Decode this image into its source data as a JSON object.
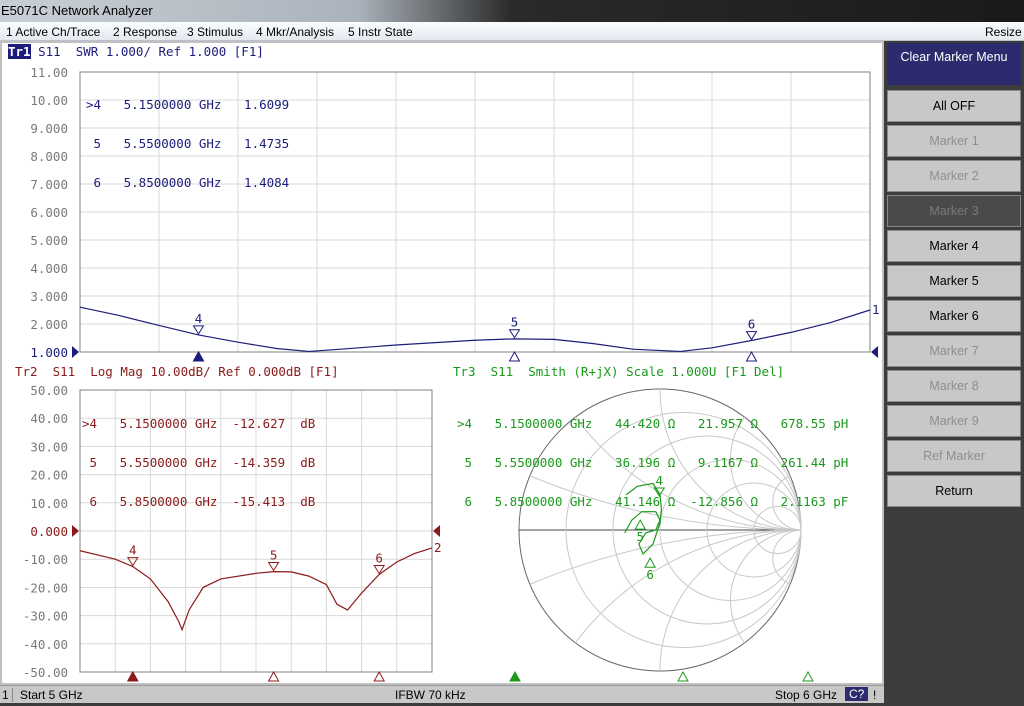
{
  "window": {
    "title": "E5071C Network Analyzer"
  },
  "menu": {
    "items": [
      "1 Active Ch/Trace",
      "2 Response",
      "3 Stimulus",
      "4 Mkr/Analysis",
      "5 Instr State"
    ],
    "resize": "Resize"
  },
  "softkeys": {
    "title": "Clear Marker Menu",
    "buttons": [
      {
        "label": "All OFF",
        "state": "enabled"
      },
      {
        "label": "Marker 1",
        "state": "disabled"
      },
      {
        "label": "Marker 2",
        "state": "disabled"
      },
      {
        "label": "Marker 3",
        "state": "selected-disabled"
      },
      {
        "label": "Marker 4",
        "state": "enabled"
      },
      {
        "label": "Marker 5",
        "state": "enabled"
      },
      {
        "label": "Marker 6",
        "state": "enabled"
      },
      {
        "label": "Marker 7",
        "state": "disabled"
      },
      {
        "label": "Marker 8",
        "state": "disabled"
      },
      {
        "label": "Marker 9",
        "state": "disabled"
      },
      {
        "label": "Ref Marker",
        "state": "disabled"
      },
      {
        "label": "Return",
        "state": "enabled"
      }
    ]
  },
  "status": {
    "channel": "1",
    "start": "Start 5 GHz",
    "ifbw": "IFBW 70 kHz",
    "stop": "Stop 6 GHz",
    "cal": "C?",
    "warn": "!"
  },
  "colors": {
    "tr1": "#1c1c7c",
    "tr2": "#8b1a1a",
    "tr3": "#1a9a1a",
    "softkey_title": "#2b2b6e"
  },
  "traces": {
    "tr1": {
      "label_box": "Tr1",
      "header": " S11  SWR 1.000/ Ref 1.000 [F1]",
      "markers": [
        ">4   5.1500000 GHz   1.6099",
        " 5   5.5500000 GHz   1.4735",
        " 6   5.8500000 GHz   1.4084"
      ],
      "ref_label": "1"
    },
    "tr2": {
      "header": "Tr2  S11  Log Mag 10.00dB/ Ref 0.000dB [F1]",
      "markers": [
        ">4   5.1500000 GHz  -12.627  dB",
        " 5   5.5500000 GHz  -14.359  dB",
        " 6   5.8500000 GHz  -15.413  dB"
      ],
      "ref_label": "2"
    },
    "tr3": {
      "header": "Tr3  S11  Smith (R+jX) Scale 1.000U [F1 Del]",
      "markers": [
        ">4   5.1500000 GHz   44.420 Ω   21.957 Ω   678.55 pH",
        " 5   5.5500000 GHz   36.196 Ω   9.1167 Ω   261.44 pH",
        " 6   5.8500000 GHz   41.146 Ω  -12.856 Ω   2.1163 pF"
      ]
    }
  },
  "chart_data": [
    {
      "type": "line",
      "title": "Tr1 S11 SWR",
      "xlim": [
        5,
        6
      ],
      "ylim": [
        1,
        11
      ],
      "yticks": [
        "11.00",
        "10.00",
        "9.000",
        "8.000",
        "7.000",
        "6.000",
        "5.000",
        "4.000",
        "3.000",
        "2.000",
        "1.000"
      ],
      "grid": true,
      "x": [
        5.0,
        5.05,
        5.1,
        5.15,
        5.2,
        5.25,
        5.29,
        5.33,
        5.4,
        5.5,
        5.55,
        5.6,
        5.65,
        5.7,
        5.76,
        5.8,
        5.85,
        5.9,
        5.95,
        6.0
      ],
      "y": [
        2.6,
        2.3,
        1.95,
        1.61,
        1.35,
        1.12,
        1.02,
        1.1,
        1.25,
        1.42,
        1.47,
        1.45,
        1.3,
        1.1,
        1.02,
        1.15,
        1.41,
        1.7,
        2.05,
        2.5
      ],
      "markers": [
        {
          "n": "4",
          "x": 5.15,
          "y": 1.6099
        },
        {
          "n": "5",
          "x": 5.55,
          "y": 1.4735
        },
        {
          "n": "6",
          "x": 5.85,
          "y": 1.4084
        }
      ]
    },
    {
      "type": "line",
      "title": "Tr2 S11 Log Mag",
      "xlim": [
        5,
        6
      ],
      "ylim": [
        -50,
        50
      ],
      "yticks": [
        "50.00",
        "40.00",
        "30.00",
        "20.00",
        "10.00",
        "0.000",
        "-10.00",
        "-20.00",
        "-30.00",
        "-40.00",
        "-50.00"
      ],
      "grid": true,
      "x": [
        5.0,
        5.05,
        5.1,
        5.15,
        5.2,
        5.25,
        5.28,
        5.29,
        5.31,
        5.35,
        5.4,
        5.5,
        5.55,
        5.6,
        5.65,
        5.7,
        5.73,
        5.76,
        5.8,
        5.85,
        5.9,
        5.95,
        6.0
      ],
      "y": [
        -7,
        -8.5,
        -10,
        -12.6,
        -17,
        -25,
        -32,
        -35,
        -28,
        -20,
        -17,
        -15,
        -14.4,
        -14.5,
        -16,
        -19,
        -26,
        -28,
        -22,
        -15.4,
        -11,
        -8,
        -6
      ],
      "markers": [
        {
          "n": "4",
          "x": 5.15,
          "y": -12.627
        },
        {
          "n": "5",
          "x": 5.55,
          "y": -14.359
        },
        {
          "n": "6",
          "x": 5.85,
          "y": -15.413
        }
      ]
    },
    {
      "type": "smith",
      "title": "Tr3 S11 Smith (R+jX)",
      "grid": true,
      "gamma_re": [
        -0.24,
        -0.16,
        -0.05,
        0.0,
        0.01,
        0.0,
        -0.05,
        -0.12,
        -0.15,
        -0.1,
        -0.03,
        0.0,
        -0.03,
        -0.13,
        -0.2,
        -0.25
      ],
      "gamma_im": [
        0.25,
        0.31,
        0.33,
        0.25,
        0.15,
        0.05,
        -0.1,
        -0.17,
        -0.1,
        -0.02,
        0.0,
        0.07,
        0.13,
        0.13,
        0.07,
        -0.02
      ],
      "markers": [
        {
          "n": "4",
          "re": -0.005,
          "im": 0.234
        },
        {
          "n": "5",
          "re": -0.14,
          "im": 0.07
        },
        {
          "n": "6",
          "re": -0.07,
          "im": -0.2
        }
      ]
    }
  ]
}
